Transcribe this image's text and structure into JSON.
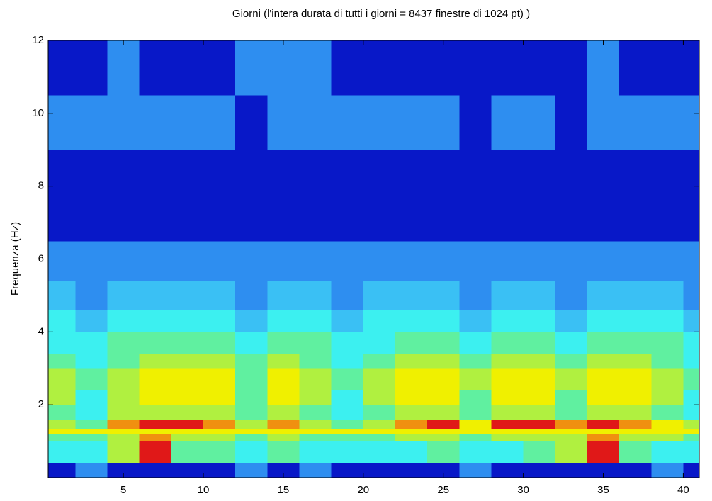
{
  "chart_data": {
    "type": "heatmap",
    "title": "Giorni (l'intera durata di tutti i giorni = 8437 finestre di 1024 pt) )",
    "ylabel": "Frequenza (Hz)",
    "x": [
      0.3,
      2,
      4,
      6,
      8,
      10,
      12,
      14,
      16,
      18,
      20,
      22,
      24,
      26,
      28,
      30,
      32,
      34,
      36,
      38,
      40,
      41
    ],
    "y": [
      0,
      0.4,
      1,
      1.2,
      1.35,
      1.6,
      2,
      2.4,
      3,
      3.4,
      4,
      4.6,
      5.4,
      6.5,
      9,
      10.5,
      12
    ],
    "z": [
      [
        1,
        2,
        1,
        1,
        1,
        1,
        2,
        1,
        2,
        1,
        1,
        1,
        1,
        2,
        1,
        1,
        1,
        1,
        1,
        2,
        1
      ],
      [
        4,
        4,
        6,
        9,
        5,
        5,
        4,
        5,
        4,
        4,
        4,
        4,
        5,
        4,
        4,
        5,
        6,
        9,
        5,
        4,
        4
      ],
      [
        5,
        5,
        6,
        8,
        6,
        6,
        5,
        6,
        5,
        5,
        5,
        6,
        6,
        5,
        6,
        6,
        6,
        8,
        6,
        6,
        5
      ],
      [
        7,
        7,
        7,
        7,
        7,
        7,
        7,
        7,
        7,
        7,
        7,
        7,
        7,
        7,
        7,
        7,
        7,
        7,
        7,
        7,
        7
      ],
      [
        6,
        5,
        8,
        9,
        9,
        8,
        6,
        8,
        6,
        5,
        6,
        8,
        9,
        7,
        9,
        9,
        8,
        9,
        8,
        7,
        6
      ],
      [
        5,
        4,
        6,
        6,
        6,
        6,
        5,
        6,
        5,
        4,
        5,
        6,
        6,
        5,
        6,
        6,
        5,
        6,
        6,
        5,
        4
      ],
      [
        6,
        4,
        6,
        7,
        7,
        7,
        5,
        7,
        6,
        4,
        6,
        7,
        7,
        5,
        7,
        7,
        5,
        7,
        7,
        6,
        4
      ],
      [
        6,
        5,
        6,
        7,
        7,
        7,
        5,
        7,
        6,
        5,
        6,
        7,
        7,
        6,
        7,
        7,
        6,
        7,
        7,
        6,
        5
      ],
      [
        5,
        4,
        5,
        6,
        6,
        6,
        5,
        6,
        5,
        4,
        5,
        6,
        6,
        5,
        6,
        6,
        5,
        6,
        6,
        5,
        4
      ],
      [
        4,
        4,
        5,
        5,
        5,
        5,
        4,
        5,
        5,
        4,
        4,
        5,
        5,
        4,
        5,
        5,
        4,
        5,
        5,
        5,
        4
      ],
      [
        4,
        3,
        4,
        4,
        4,
        4,
        3,
        4,
        4,
        3,
        4,
        4,
        4,
        3,
        4,
        4,
        3,
        4,
        4,
        4,
        3
      ],
      [
        3,
        2,
        3,
        3,
        3,
        3,
        2,
        3,
        3,
        2,
        3,
        3,
        3,
        2,
        3,
        3,
        2,
        3,
        3,
        3,
        2
      ],
      [
        2,
        2,
        2,
        2,
        2,
        2,
        2,
        2,
        2,
        2,
        2,
        2,
        2,
        2,
        2,
        2,
        2,
        2,
        2,
        2,
        2
      ],
      [
        1,
        1,
        1,
        1,
        1,
        1,
        1,
        1,
        1,
        1,
        1,
        1,
        1,
        1,
        1,
        1,
        1,
        1,
        1,
        1,
        1
      ],
      [
        2,
        2,
        2,
        2,
        2,
        2,
        1,
        2,
        2,
        2,
        2,
        2,
        2,
        1,
        2,
        2,
        1,
        2,
        2,
        2,
        2
      ],
      [
        1,
        1,
        2,
        1,
        1,
        1,
        2,
        2,
        2,
        1,
        1,
        1,
        1,
        1,
        1,
        1,
        1,
        2,
        1,
        1,
        1
      ]
    ],
    "colors": [
      "#0818c8",
      "#2e8ef0",
      "#3ac0f4",
      "#3cf0f0",
      "#60f0a0",
      "#b0f040",
      "#f0f000",
      "#f09010",
      "#e01818"
    ],
    "xlim": [
      0.3,
      41
    ],
    "ylim": [
      0,
      12
    ],
    "xticks": [
      5,
      10,
      15,
      20,
      25,
      30,
      35,
      40
    ],
    "yticks": [
      2,
      4,
      6,
      8,
      10,
      12
    ]
  }
}
